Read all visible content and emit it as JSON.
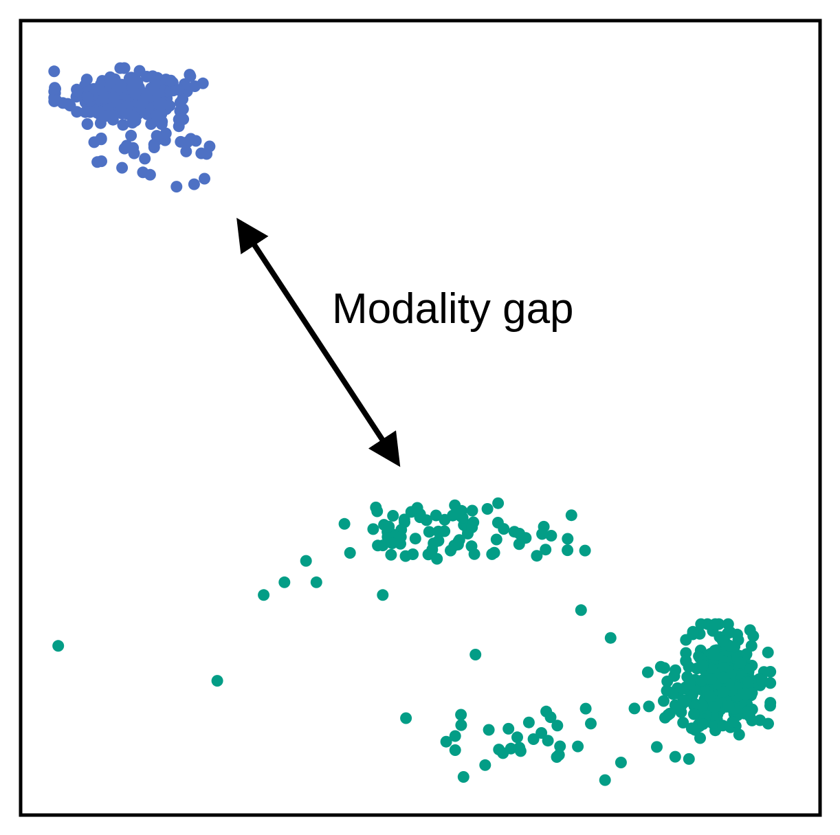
{
  "chart_data": {
    "type": "scatter",
    "title": "",
    "xlabel": "",
    "ylabel": "",
    "axes_visible": false,
    "xlim": [
      0,
      100
    ],
    "ylim": [
      0,
      100
    ],
    "grid": false,
    "annotation": {
      "text": "Modality gap",
      "arrow": {
        "from": [
          25.5,
          77.5
        ],
        "to": [
          49.0,
          41.5
        ],
        "style": "double-headed"
      }
    },
    "colors": {
      "series_a": "#4e71c4",
      "series_b": "#039d86"
    },
    "series": [
      {
        "color_key": "series_a",
        "clusters": [
          {
            "center": [
              13.0,
              90.5
            ],
            "spread": [
              4.0,
              1.6
            ],
            "count": 230
          },
          {
            "center": [
              18.0,
              85.0
            ],
            "spread": [
              3.6,
              1.6
            ],
            "count": 28
          }
        ],
        "points": [
          [
            9.2,
            84.7
          ],
          [
            9.6,
            82.2
          ],
          [
            10.1,
            82.3
          ],
          [
            14.2,
            83.3
          ],
          [
            22.6,
            83.3
          ],
          [
            23.0,
            80.1
          ],
          [
            19.5,
            79.1
          ],
          [
            21.7,
            79.4
          ],
          [
            15.3,
            80.9
          ],
          [
            16.2,
            80.6
          ],
          [
            22.8,
            92.1
          ]
        ]
      },
      {
        "color_key": "series_b",
        "clusters": [
          {
            "center": [
              88.5,
              17.0
            ],
            "spread": [
              2.4,
              3.2
            ],
            "count": 260
          },
          {
            "center": [
              82.5,
              13.5
            ],
            "spread": [
              2.6,
              3.0
            ],
            "count": 45
          },
          {
            "center": [
              53.5,
              36.0
            ],
            "spread": [
              7.0,
              1.7
            ],
            "count": 78
          },
          {
            "center": [
              63.0,
              9.0
            ],
            "spread": [
              5.5,
              2.0
            ],
            "count": 28
          }
        ],
        "points": [
          [
            4.7,
            21.3
          ],
          [
            24.6,
            16.9
          ],
          [
            48.2,
            12.2
          ],
          [
            30.4,
            27.7
          ],
          [
            33.0,
            29.3
          ],
          [
            35.7,
            32.0
          ],
          [
            37.0,
            29.3
          ],
          [
            41.2,
            33.0
          ],
          [
            45.3,
            27.7
          ],
          [
            70.6,
            33.3
          ],
          [
            70.1,
            25.8
          ],
          [
            73.8,
            22.3
          ],
          [
            73.1,
            4.4
          ],
          [
            55.4,
            4.8
          ],
          [
            56.9,
            20.2
          ]
        ]
      }
    ]
  }
}
